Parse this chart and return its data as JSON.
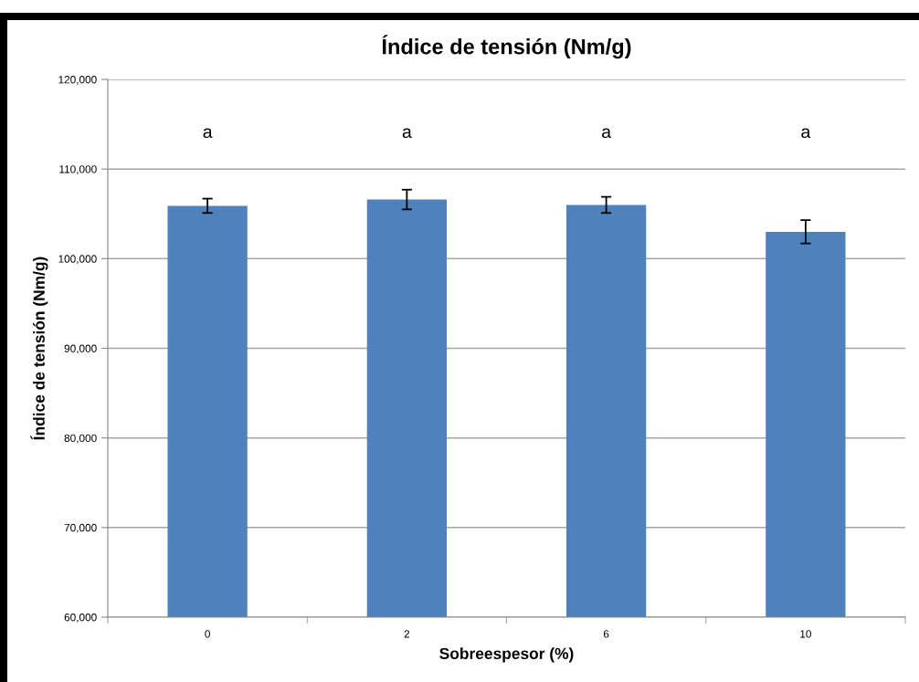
{
  "chart_data": {
    "type": "bar",
    "title": "Índice de tensión (Nm/g)",
    "xlabel": "Sobreespesor (%)",
    "ylabel": "Índice de tensión (Nm/g)",
    "categories": [
      "0",
      "2",
      "6",
      "10"
    ],
    "values": [
      105900,
      106600,
      106000,
      103000
    ],
    "errors": [
      800,
      1100,
      900,
      1300
    ],
    "color": "#4f81bd",
    "ylim": [
      60000,
      120000
    ],
    "yticks": [
      {
        "value": 60000,
        "label": "60,000"
      },
      {
        "value": 70000,
        "label": "70,000"
      },
      {
        "value": 80000,
        "label": "80,000"
      },
      {
        "value": 90000,
        "label": "90,000"
      },
      {
        "value": 100000,
        "label": "100,000"
      },
      {
        "value": 110000,
        "label": "110,000"
      },
      {
        "value": 120000,
        "label": "120,000"
      }
    ],
    "grid": "y",
    "annotations": [
      "a",
      "a",
      "a",
      "a"
    ]
  }
}
